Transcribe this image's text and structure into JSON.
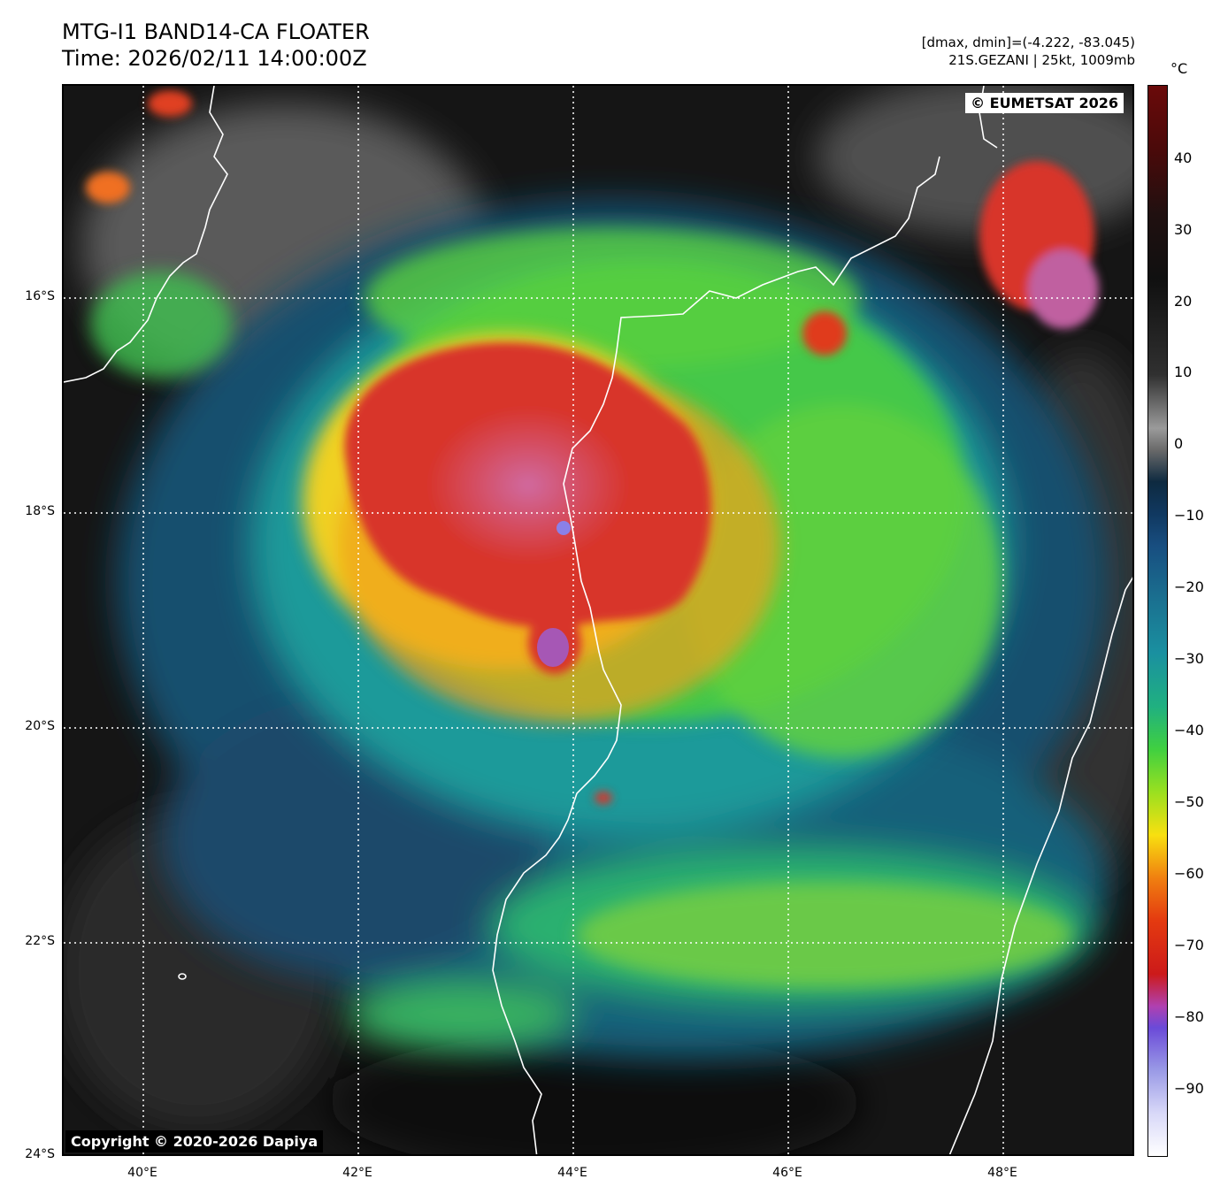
{
  "header": {
    "title_line1": "MTG-I1 BAND14-CA FLOATER",
    "title_line2": "Time: 2026/02/11 14:00:00Z",
    "info_line1": "[dmax, dmin]=(-4.222, -83.045)",
    "info_line2": "21S.GEZANI | 25kt, 1009mb"
  },
  "map": {
    "credit_top": "© EUMETSAT 2026",
    "credit_bottom": "Copyright © 2020-2026 Dapiya",
    "lat_labels": [
      "16°S",
      "18°S",
      "20°S",
      "22°S",
      "24°S"
    ],
    "lon_labels": [
      "40°E",
      "42°E",
      "44°E",
      "46°E",
      "48°E"
    ]
  },
  "colorbar": {
    "unit": "°C",
    "ticks": [
      "40",
      "30",
      "20",
      "10",
      "0",
      "−10",
      "−20",
      "−30",
      "−40",
      "−50",
      "−60",
      "−70",
      "−80",
      "−90"
    ]
  }
}
